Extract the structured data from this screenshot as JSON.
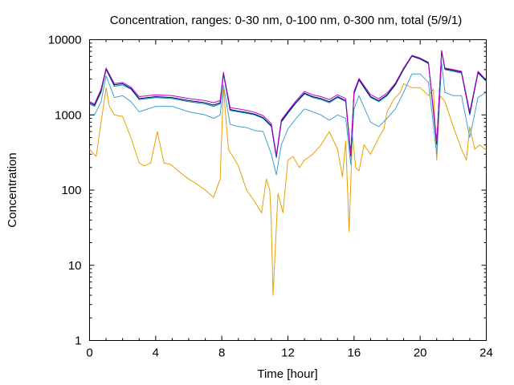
{
  "chart_data": {
    "type": "line",
    "title": "Concentration, ranges: 0-30 nm, 0-100 nm, 0-300 nm, total (5/9/1)",
    "xlabel": "Time [hour]",
    "ylabel": "Concentration",
    "xlim": [
      0,
      24
    ],
    "ylim": [
      1,
      10000
    ],
    "yscale": "log",
    "grid": false,
    "legend": "none",
    "x_ticks": [
      "0",
      "4",
      "8",
      "12",
      "16",
      "20",
      "24"
    ],
    "y_ticks": [
      "1",
      "10",
      "100",
      "1000",
      "10000"
    ],
    "x_tick_values": [
      0,
      4,
      8,
      12,
      16,
      20,
      24
    ],
    "y_tick_values": [
      1,
      10,
      100,
      1000,
      10000
    ],
    "series": [
      {
        "color": "#e8a000",
        "x": [
          0,
          0.4,
          0.7,
          1.0,
          1.2,
          1.5,
          2.0,
          2.5,
          3.0,
          3.3,
          3.7,
          4.1,
          4.5,
          4.9,
          5.5,
          6.0,
          6.5,
          7.0,
          7.5,
          7.9,
          8.1,
          8.4,
          9.0,
          9.5,
          10.0,
          10.4,
          10.7,
          10.9,
          11.0,
          11.1,
          11.4,
          11.7,
          12.0,
          12.3,
          12.7,
          13.0,
          13.5,
          14.0,
          14.5,
          15.0,
          15.3,
          15.5,
          15.7,
          15.9,
          16.1,
          16.3,
          16.6,
          17.0,
          17.5,
          17.8,
          18.0,
          18.4,
          18.8,
          19.0,
          19.5,
          20.0,
          20.5,
          20.8,
          21.0,
          21.2,
          21.5,
          22.0,
          22.5,
          22.8,
          23.0,
          23.3,
          23.6,
          24.0
        ],
        "y": [
          350,
          280,
          800,
          2300,
          1300,
          1000,
          950,
          500,
          230,
          210,
          230,
          600,
          230,
          220,
          170,
          140,
          120,
          100,
          80,
          140,
          2300,
          350,
          210,
          100,
          70,
          50,
          140,
          100,
          35,
          4,
          90,
          50,
          250,
          280,
          200,
          250,
          300,
          400,
          600,
          350,
          150,
          450,
          28,
          550,
          200,
          180,
          400,
          300,
          500,
          650,
          1100,
          1600,
          2000,
          2600,
          2300,
          2300,
          1800,
          2200,
          250,
          1800,
          1500,
          700,
          350,
          250,
          700,
          350,
          400,
          340
        ]
      },
      {
        "color": "#40a0d0",
        "x": [
          0,
          0.3,
          0.7,
          1.0,
          1.5,
          2.0,
          2.5,
          3.0,
          4.0,
          5.0,
          6.0,
          7.0,
          7.5,
          7.9,
          8.1,
          8.5,
          9.0,
          9.5,
          10.0,
          10.5,
          11.0,
          11.3,
          11.6,
          12.0,
          12.5,
          13.0,
          13.5,
          14.0,
          14.5,
          15.0,
          15.5,
          15.8,
          16.0,
          16.3,
          17.0,
          17.5,
          18.0,
          18.5,
          19.0,
          19.5,
          20.0,
          20.5,
          21.0,
          21.3,
          21.5,
          22.0,
          22.5,
          23.0,
          23.5,
          24.0
        ],
        "y": [
          1000,
          1000,
          1500,
          3300,
          1700,
          1800,
          1500,
          1100,
          1300,
          1300,
          1100,
          1000,
          900,
          1000,
          2500,
          750,
          700,
          680,
          620,
          600,
          300,
          160,
          400,
          650,
          900,
          1200,
          1100,
          1000,
          850,
          1000,
          900,
          220,
          1200,
          1800,
          800,
          700,
          900,
          1200,
          2000,
          3500,
          3500,
          2700,
          300,
          5000,
          2000,
          1800,
          1800,
          500,
          1700,
          2000
        ]
      },
      {
        "color": "#008b8b",
        "x": [
          0,
          0.3,
          0.7,
          1.0,
          1.5,
          2.0,
          2.5,
          3.0,
          4.0,
          5.0,
          6.0,
          7.0,
          7.5,
          7.9,
          8.1,
          8.5,
          9.0,
          9.5,
          10.0,
          10.5,
          11.0,
          11.3,
          11.6,
          12.0,
          12.5,
          13.0,
          13.5,
          14.0,
          14.5,
          15.0,
          15.5,
          15.8,
          16.0,
          16.3,
          17.0,
          17.5,
          18.0,
          18.5,
          19.0,
          19.5,
          20.0,
          20.5,
          21.0,
          21.3,
          21.5,
          22.0,
          22.5,
          23.0,
          23.5,
          24.0
        ],
        "y": [
          1400,
          1300,
          2000,
          4000,
          2400,
          2500,
          2200,
          1600,
          1700,
          1650,
          1500,
          1400,
          1300,
          1400,
          3500,
          1150,
          1100,
          1050,
          1000,
          900,
          700,
          270,
          800,
          1050,
          1450,
          1900,
          1700,
          1600,
          1450,
          1700,
          1500,
          280,
          1900,
          2900,
          1700,
          1500,
          1800,
          2500,
          4000,
          6000,
          5500,
          4800,
          400,
          7000,
          4000,
          3800,
          3600,
          1000,
          3600,
          2800
        ]
      },
      {
        "color": "#00008b",
        "x": [
          0,
          0.3,
          0.7,
          1.0,
          1.5,
          2.0,
          2.5,
          3.0,
          4.0,
          5.0,
          6.0,
          7.0,
          7.5,
          7.9,
          8.1,
          8.5,
          9.0,
          9.5,
          10.0,
          10.5,
          11.0,
          11.3,
          11.6,
          12.0,
          12.5,
          13.0,
          13.5,
          14.0,
          14.5,
          15.0,
          15.5,
          15.8,
          16.0,
          16.3,
          17.0,
          17.5,
          18.0,
          18.5,
          19.0,
          19.5,
          20.0,
          20.5,
          21.0,
          21.3,
          21.5,
          22.0,
          22.5,
          23.0,
          23.5,
          24.0
        ],
        "y": [
          1450,
          1350,
          2100,
          4100,
          2500,
          2600,
          2250,
          1650,
          1750,
          1700,
          1550,
          1450,
          1350,
          1450,
          3600,
          1180,
          1120,
          1080,
          1020,
          920,
          720,
          280,
          820,
          1080,
          1480,
          1950,
          1750,
          1650,
          1500,
          1750,
          1550,
          290,
          1950,
          2950,
          1750,
          1550,
          1850,
          2550,
          4100,
          6100,
          5600,
          4900,
          420,
          7100,
          4100,
          3900,
          3700,
          1050,
          3700,
          2850
        ]
      },
      {
        "color": "#c000c0",
        "x": [
          0,
          0.3,
          0.7,
          1.0,
          1.5,
          2.0,
          2.5,
          3.0,
          4.0,
          5.0,
          6.0,
          7.0,
          7.5,
          7.9,
          8.1,
          8.5,
          9.0,
          9.5,
          10.0,
          10.5,
          11.0,
          11.3,
          11.6,
          12.0,
          12.5,
          13.0,
          13.5,
          14.0,
          14.5,
          15.0,
          15.5,
          15.8,
          16.0,
          16.3,
          17.0,
          17.5,
          18.0,
          18.5,
          19.0,
          19.5,
          20.0,
          20.5,
          21.0,
          21.3,
          21.5,
          22.0,
          22.5,
          23.0,
          23.5,
          24.0
        ],
        "y": [
          1500,
          1400,
          2200,
          4200,
          2600,
          2700,
          2350,
          1750,
          1850,
          1800,
          1650,
          1550,
          1450,
          1550,
          3700,
          1250,
          1200,
          1150,
          1080,
          980,
          760,
          290,
          860,
          1120,
          1550,
          2050,
          1850,
          1750,
          1600,
          1850,
          1650,
          300,
          2050,
          3050,
          1850,
          1650,
          1950,
          2650,
          4200,
          6200,
          5700,
          5000,
          440,
          7200,
          4200,
          4000,
          3800,
          1100,
          3800,
          2900
        ]
      }
    ]
  }
}
